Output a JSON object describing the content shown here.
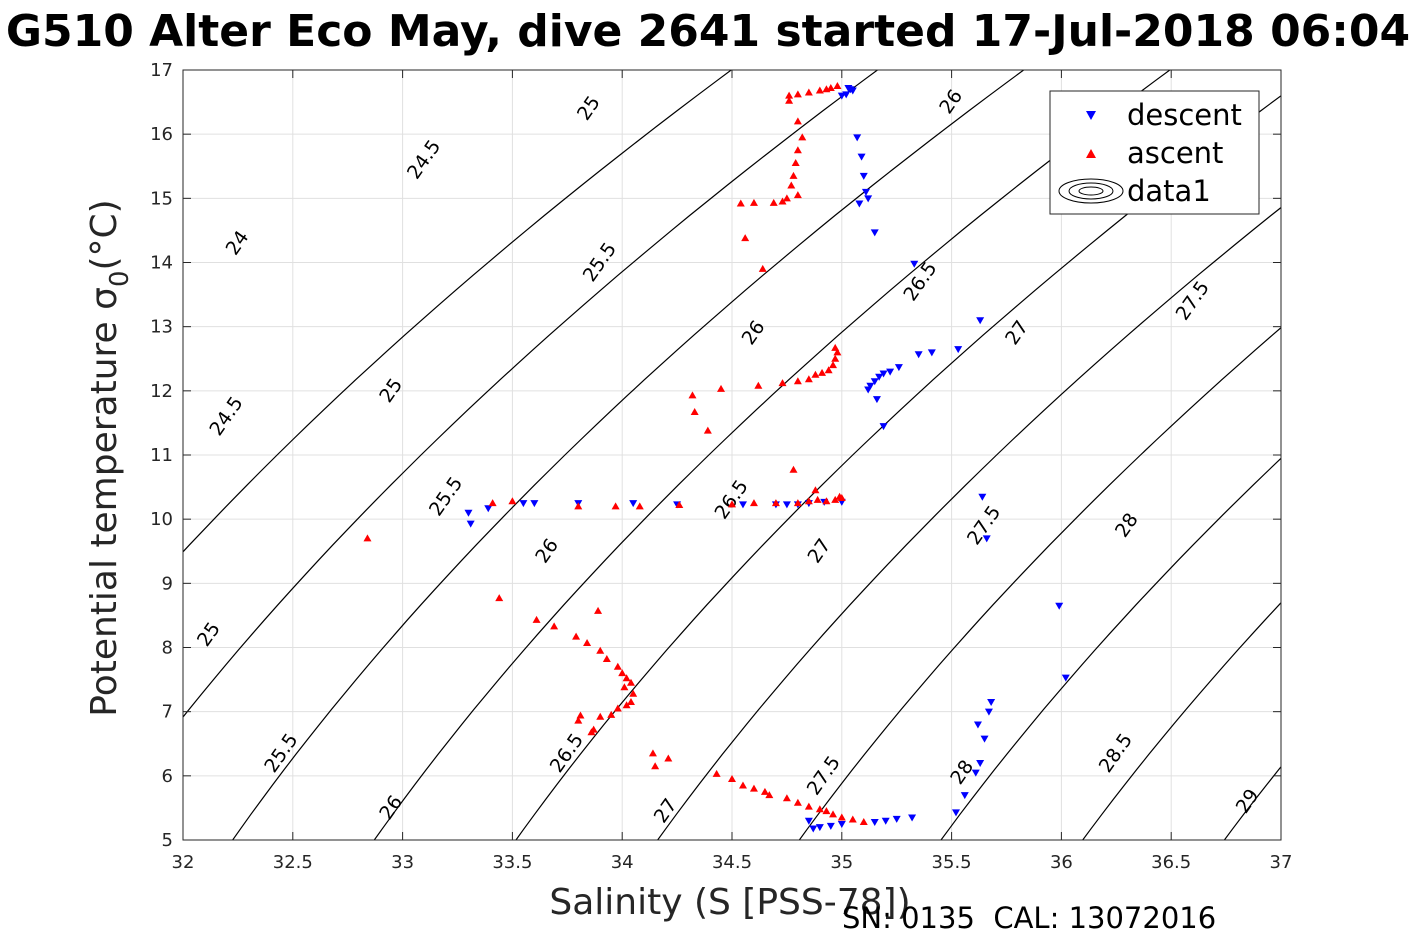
{
  "chart_data": {
    "type": "scatter",
    "title": "G510 Alter Eco May, dive 2641 started 17-Jul-2018 06:04",
    "xlabel": "Salinity (S [PSS-78])",
    "ylabel": "Potential temperature σ",
    "ylabel_sub": "0",
    "ylabel_unit": "(°C)",
    "xlim": [
      32,
      37
    ],
    "ylim": [
      5,
      17
    ],
    "xticks": [
      32,
      32.5,
      33,
      33.5,
      34,
      34.5,
      35,
      35.5,
      36,
      36.5,
      37
    ],
    "yticks": [
      5,
      6,
      7,
      8,
      9,
      10,
      11,
      12,
      13,
      14,
      15,
      16,
      17
    ],
    "grid": true,
    "legend_position": "top-right",
    "footer": "SN: 0135  CAL: 13072016",
    "colors": {
      "descent": "#0000ff",
      "ascent": "#ff0000",
      "contour": "#000000",
      "grid": "#e0e0e0"
    },
    "contours": {
      "levels": [
        24,
        24.5,
        25,
        25.5,
        26,
        26.5,
        27,
        27.5,
        28,
        28.5,
        29
      ],
      "labels": [
        {
          "text": "24",
          "x": 32.25,
          "y": 14.3
        },
        {
          "text": "24.5",
          "x": 33.1,
          "y": 15.6
        },
        {
          "text": "25",
          "x": 33.85,
          "y": 16.4
        },
        {
          "text": "26",
          "x": 35.5,
          "y": 16.5
        },
        {
          "text": "24.5",
          "x": 32.2,
          "y": 11.6
        },
        {
          "text": "25",
          "x": 32.95,
          "y": 12.0
        },
        {
          "text": "25.5",
          "x": 33.9,
          "y": 14.0
        },
        {
          "text": "26",
          "x": 34.6,
          "y": 12.9
        },
        {
          "text": "26.5",
          "x": 35.36,
          "y": 13.7
        },
        {
          "text": "27",
          "x": 35.8,
          "y": 12.9
        },
        {
          "text": "27.5",
          "x": 36.6,
          "y": 13.4
        },
        {
          "text": "25",
          "x": 32.12,
          "y": 8.2
        },
        {
          "text": "25.5",
          "x": 33.2,
          "y": 10.35
        },
        {
          "text": "26",
          "x": 33.66,
          "y": 9.5
        },
        {
          "text": "26.5",
          "x": 34.5,
          "y": 10.3
        },
        {
          "text": "27",
          "x": 34.9,
          "y": 9.5
        },
        {
          "text": "27.5",
          "x": 35.65,
          "y": 9.9
        },
        {
          "text": "28",
          "x": 36.3,
          "y": 9.9
        },
        {
          "text": "25.5",
          "x": 32.45,
          "y": 6.35
        },
        {
          "text": "26",
          "x": 32.95,
          "y": 5.5
        },
        {
          "text": "26.5",
          "x": 33.75,
          "y": 6.35
        },
        {
          "text": "27",
          "x": 34.2,
          "y": 5.45
        },
        {
          "text": "27.5",
          "x": 34.92,
          "y": 6.0
        },
        {
          "text": "28",
          "x": 35.55,
          "y": 6.05
        },
        {
          "text": "28.5",
          "x": 36.25,
          "y": 6.35
        },
        {
          "text": "29",
          "x": 36.85,
          "y": 5.6
        }
      ]
    },
    "series": [
      {
        "name": "descent",
        "marker": "triangle-down",
        "color": "#0000ff",
        "points": [
          [
            35.03,
            16.72
          ],
          [
            35.04,
            16.7
          ],
          [
            35.05,
            16.68
          ],
          [
            35.0,
            16.6
          ],
          [
            35.02,
            16.62
          ],
          [
            35.07,
            15.95
          ],
          [
            35.09,
            15.65
          ],
          [
            35.1,
            15.35
          ],
          [
            35.11,
            15.1
          ],
          [
            35.12,
            15.0
          ],
          [
            35.08,
            14.92
          ],
          [
            35.15,
            14.47
          ],
          [
            35.33,
            13.98
          ],
          [
            35.63,
            13.1
          ],
          [
            35.53,
            12.65
          ],
          [
            35.41,
            12.6
          ],
          [
            35.35,
            12.57
          ],
          [
            35.26,
            12.37
          ],
          [
            35.22,
            12.3
          ],
          [
            35.19,
            12.27
          ],
          [
            35.17,
            12.22
          ],
          [
            35.15,
            12.15
          ],
          [
            35.13,
            12.08
          ],
          [
            35.12,
            12.02
          ],
          [
            35.16,
            11.87
          ],
          [
            35.19,
            11.45
          ],
          [
            35.64,
            10.35
          ],
          [
            35.66,
            9.7
          ],
          [
            33.3,
            10.1
          ],
          [
            33.31,
            9.93
          ],
          [
            33.39,
            10.17
          ],
          [
            33.55,
            10.25
          ],
          [
            33.6,
            10.25
          ],
          [
            33.8,
            10.25
          ],
          [
            34.05,
            10.25
          ],
          [
            34.25,
            10.23
          ],
          [
            34.55,
            10.23
          ],
          [
            34.7,
            10.23
          ],
          [
            34.75,
            10.23
          ],
          [
            34.8,
            10.23
          ],
          [
            34.85,
            10.25
          ],
          [
            34.92,
            10.27
          ],
          [
            35.0,
            10.27
          ],
          [
            35.99,
            8.65
          ],
          [
            36.02,
            7.53
          ],
          [
            35.68,
            7.15
          ],
          [
            35.67,
            7.0
          ],
          [
            35.62,
            6.8
          ],
          [
            35.65,
            6.58
          ],
          [
            35.63,
            6.2
          ],
          [
            35.61,
            6.05
          ],
          [
            35.56,
            5.7
          ],
          [
            35.52,
            5.43
          ],
          [
            35.32,
            5.35
          ],
          [
            35.25,
            5.33
          ],
          [
            35.2,
            5.3
          ],
          [
            35.15,
            5.28
          ],
          [
            35.0,
            5.25
          ],
          [
            34.95,
            5.22
          ],
          [
            34.9,
            5.2
          ],
          [
            34.87,
            5.18
          ],
          [
            34.85,
            5.3
          ]
        ]
      },
      {
        "name": "ascent",
        "marker": "triangle-up",
        "color": "#ff0000",
        "points": [
          [
            34.98,
            16.75
          ],
          [
            34.95,
            16.72
          ],
          [
            34.93,
            16.7
          ],
          [
            34.9,
            16.68
          ],
          [
            34.85,
            16.65
          ],
          [
            34.8,
            16.62
          ],
          [
            34.76,
            16.6
          ],
          [
            34.76,
            16.52
          ],
          [
            34.8,
            16.2
          ],
          [
            34.82,
            15.95
          ],
          [
            34.8,
            15.75
          ],
          [
            34.79,
            15.55
          ],
          [
            34.78,
            15.35
          ],
          [
            34.77,
            15.2
          ],
          [
            34.8,
            15.05
          ],
          [
            34.75,
            15.0
          ],
          [
            34.73,
            14.95
          ],
          [
            34.69,
            14.93
          ],
          [
            34.6,
            14.93
          ],
          [
            34.54,
            14.92
          ],
          [
            34.56,
            14.38
          ],
          [
            34.64,
            13.9
          ],
          [
            34.97,
            12.67
          ],
          [
            34.98,
            12.6
          ],
          [
            34.97,
            12.5
          ],
          [
            34.96,
            12.4
          ],
          [
            34.94,
            12.32
          ],
          [
            34.91,
            12.28
          ],
          [
            34.88,
            12.25
          ],
          [
            34.85,
            12.18
          ],
          [
            34.8,
            12.15
          ],
          [
            34.73,
            12.12
          ],
          [
            34.62,
            12.08
          ],
          [
            34.45,
            12.03
          ],
          [
            34.32,
            11.93
          ],
          [
            34.33,
            11.67
          ],
          [
            34.39,
            11.38
          ],
          [
            34.78,
            10.77
          ],
          [
            34.88,
            10.45
          ],
          [
            34.99,
            10.35
          ],
          [
            35.0,
            10.33
          ],
          [
            34.97,
            10.3
          ],
          [
            34.93,
            10.28
          ],
          [
            34.89,
            10.3
          ],
          [
            34.85,
            10.28
          ],
          [
            34.8,
            10.25
          ],
          [
            34.7,
            10.25
          ],
          [
            34.6,
            10.25
          ],
          [
            34.5,
            10.23
          ],
          [
            34.26,
            10.22
          ],
          [
            34.08,
            10.2
          ],
          [
            33.97,
            10.2
          ],
          [
            33.8,
            10.2
          ],
          [
            33.5,
            10.28
          ],
          [
            33.41,
            10.25
          ],
          [
            32.84,
            9.7
          ],
          [
            33.44,
            8.77
          ],
          [
            33.89,
            8.57
          ],
          [
            33.61,
            8.43
          ],
          [
            33.69,
            8.33
          ],
          [
            33.79,
            8.17
          ],
          [
            33.84,
            8.07
          ],
          [
            33.9,
            7.95
          ],
          [
            33.93,
            7.82
          ],
          [
            33.98,
            7.7
          ],
          [
            34.0,
            7.6
          ],
          [
            34.02,
            7.52
          ],
          [
            34.04,
            7.45
          ],
          [
            34.01,
            7.38
          ],
          [
            34.05,
            7.28
          ],
          [
            34.04,
            7.15
          ],
          [
            34.02,
            7.1
          ],
          [
            33.98,
            7.05
          ],
          [
            33.95,
            6.95
          ],
          [
            33.9,
            6.92
          ],
          [
            33.87,
            6.72
          ],
          [
            33.86,
            6.68
          ],
          [
            33.81,
            6.94
          ],
          [
            33.8,
            6.86
          ],
          [
            34.14,
            6.35
          ],
          [
            34.21,
            6.27
          ],
          [
            34.15,
            6.15
          ],
          [
            34.43,
            6.03
          ],
          [
            34.5,
            5.95
          ],
          [
            34.55,
            5.85
          ],
          [
            34.6,
            5.8
          ],
          [
            34.65,
            5.75
          ],
          [
            34.67,
            5.7
          ],
          [
            34.75,
            5.65
          ],
          [
            34.8,
            5.58
          ],
          [
            34.85,
            5.52
          ],
          [
            34.9,
            5.48
          ],
          [
            34.93,
            5.45
          ],
          [
            34.96,
            5.4
          ],
          [
            35.0,
            5.35
          ],
          [
            35.05,
            5.32
          ],
          [
            35.1,
            5.28
          ]
        ]
      }
    ],
    "legend": [
      {
        "label": "descent",
        "marker": "triangle-down",
        "color": "#0000ff"
      },
      {
        "label": "ascent",
        "marker": "triangle-up",
        "color": "#ff0000"
      },
      {
        "label": "data1",
        "marker": "contour",
        "color": "#000000"
      }
    ]
  }
}
